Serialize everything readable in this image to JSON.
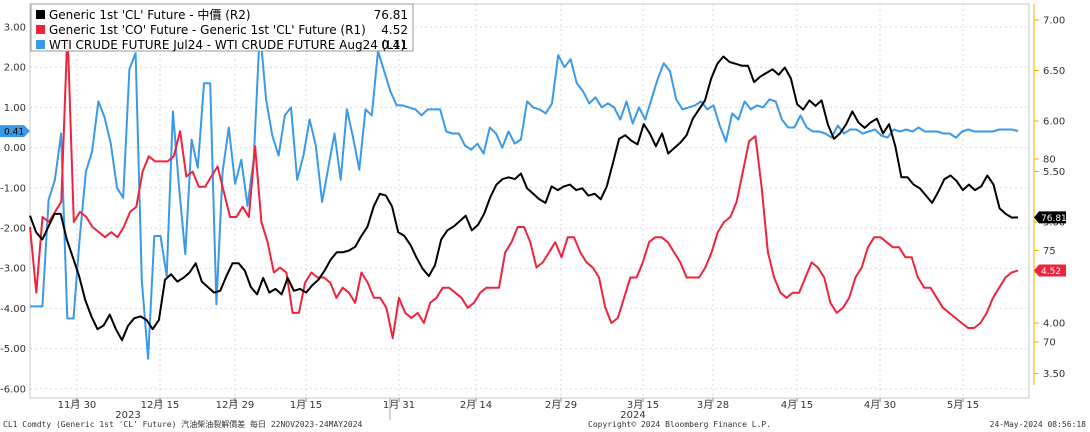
{
  "chart_data": {
    "type": "line",
    "legend": {
      "placement": "top-left",
      "items": [
        {
          "label": "Generic 1st 'CL' Future - 中價 (R2)",
          "value": "76.81",
          "color": "#000000"
        },
        {
          "label": "Generic 1st 'CO' Future - Generic 1st 'CL' Future (R1)",
          "value": "4.52",
          "color": "#ef233c"
        },
        {
          "label": "WTI CRUDE FUTURE Jul24 - WTI CRUDE FUTURE Aug24 (L1)",
          "value": "0.41",
          "color": "#3a9ae8"
        }
      ]
    },
    "y_left": {
      "ticks": [
        "3.00",
        "2.00",
        "1.00",
        "0.00",
        "-1.00",
        "-2.00",
        "-3.00",
        "-4.00",
        "-5.00",
        "-6.00"
      ],
      "range": [
        -6.0,
        3.0
      ]
    },
    "y_right1": {
      "ticks": [
        "7.00",
        "6.50",
        "6.00",
        "5.50",
        "5.00",
        "4.50",
        "4.00",
        "3.50"
      ],
      "range": [
        3.5,
        7.0
      ]
    },
    "y_right2": {
      "ticks": [
        "80",
        "75",
        "70"
      ],
      "range": [
        70,
        80
      ]
    },
    "x_ticks": [
      "11月 30",
      "12月 15",
      "12月 29",
      "1月 15",
      "1月 31",
      "2月 14",
      "2月 29",
      "3月 15",
      "3月 28",
      "4月 15",
      "4月 30",
      "5月 15"
    ],
    "year_labels": [
      "2023",
      "2024"
    ],
    "last_value_tags": [
      {
        "value": "0.41",
        "color": "#3a9ae8"
      },
      {
        "value": "76.81",
        "color": "#000000"
      },
      {
        "value": "4.52",
        "color": "#ef233c"
      }
    ],
    "series": [
      {
        "name": "WTI CRUDE FUTURE Jul24 - WTI CRUDE FUTURE Aug24 (L1)",
        "axis": "L1",
        "color": "#3a9ae8",
        "values": [
          -3.95,
          -3.95,
          -3.95,
          -1.3,
          -0.8,
          0.35,
          -4.25,
          -4.25,
          -2.25,
          -0.6,
          -0.1,
          1.15,
          0.75,
          0.1,
          -1.0,
          -1.25,
          1.95,
          2.35,
          -3.3,
          -5.25,
          -2.2,
          -2.2,
          -3.2,
          0.9,
          -1.0,
          -2.65,
          0.2,
          -0.5,
          1.6,
          1.6,
          -3.9,
          -0.6,
          0.5,
          -0.9,
          -0.3,
          -1.45,
          -0.3,
          2.95,
          1.2,
          0.3,
          -0.2,
          0.8,
          1.0,
          -0.8,
          -0.2,
          0.7,
          0.05,
          -1.35,
          -0.5,
          0.35,
          -0.8,
          0.95,
          0.25,
          -0.55,
          0.95,
          0.8,
          2.4,
          1.9,
          1.4,
          1.05,
          1.05,
          1.0,
          0.95,
          0.8,
          0.95,
          0.95,
          0.95,
          0.4,
          0.35,
          0.35,
          0.05,
          -0.05,
          0.1,
          -0.15,
          0.5,
          0.35,
          0.0,
          0.4,
          0.1,
          0.2,
          1.15,
          1.0,
          0.95,
          0.85,
          1.1,
          2.3,
          2.0,
          2.2,
          1.6,
          1.4,
          1.1,
          1.25,
          1.0,
          1.1,
          1.0,
          0.7,
          1.15,
          0.6,
          1.0,
          0.7,
          1.2,
          1.7,
          2.1,
          1.9,
          1.2,
          0.95,
          1.0,
          1.05,
          1.15,
          0.95,
          1.05,
          0.55,
          0.15,
          0.85,
          0.7,
          1.15,
          0.95,
          1.05,
          1.0,
          1.2,
          1.15,
          0.7,
          0.5,
          0.5,
          0.8,
          0.5,
          0.4,
          0.4,
          0.35,
          0.25,
          0.55,
          0.35,
          0.45,
          0.45,
          0.35,
          0.4,
          0.45,
          0.3,
          0.25,
          0.45,
          0.4,
          0.45,
          0.4,
          0.5,
          0.4,
          0.4,
          0.4,
          0.35,
          0.35,
          0.25,
          0.4,
          0.45,
          0.4,
          0.4,
          0.4,
          0.4,
          0.45,
          0.45,
          0.45,
          0.41
        ]
      },
      {
        "name": "Generic 1st 'CO' Future - Generic 1st 'CL' Future (R1)",
        "axis": "R1",
        "color": "#ef233c",
        "values": [
          4.95,
          4.3,
          5.05,
          5.0,
          5.1,
          5.2,
          6.9,
          5.0,
          5.1,
          5.05,
          4.95,
          4.9,
          4.85,
          4.9,
          4.85,
          4.95,
          5.1,
          5.15,
          5.5,
          5.65,
          5.6,
          5.6,
          5.6,
          5.65,
          5.9,
          5.45,
          5.5,
          5.35,
          5.35,
          5.45,
          5.55,
          5.3,
          5.05,
          5.05,
          5.15,
          5.05,
          5.75,
          5.0,
          4.8,
          4.5,
          4.55,
          4.5,
          4.1,
          4.1,
          4.4,
          4.5,
          4.45,
          4.45,
          4.4,
          4.25,
          4.35,
          4.3,
          4.2,
          4.5,
          4.4,
          4.25,
          4.25,
          4.15,
          3.85,
          4.25,
          4.1,
          4.05,
          4.1,
          4.0,
          4.2,
          4.25,
          4.35,
          4.35,
          4.3,
          4.25,
          4.15,
          4.2,
          4.3,
          4.35,
          4.35,
          4.35,
          4.7,
          4.8,
          4.95,
          4.95,
          4.8,
          4.55,
          4.6,
          4.7,
          4.8,
          4.65,
          4.85,
          4.85,
          4.7,
          4.6,
          4.55,
          4.45,
          4.15,
          4.0,
          4.05,
          4.25,
          4.45,
          4.45,
          4.6,
          4.8,
          4.85,
          4.85,
          4.8,
          4.7,
          4.6,
          4.45,
          4.45,
          4.45,
          4.55,
          4.7,
          4.9,
          5.0,
          5.05,
          5.2,
          5.5,
          5.8,
          5.85,
          5.35,
          4.7,
          4.45,
          4.3,
          4.25,
          4.3,
          4.3,
          4.45,
          4.6,
          4.55,
          4.45,
          4.2,
          4.1,
          4.15,
          4.25,
          4.45,
          4.55,
          4.75,
          4.85,
          4.85,
          4.8,
          4.75,
          4.75,
          4.65,
          4.65,
          4.45,
          4.35,
          4.35,
          4.25,
          4.15,
          4.1,
          4.05,
          4.0,
          3.95,
          3.95,
          4.0,
          4.1,
          4.25,
          4.35,
          4.45,
          4.5,
          4.52
        ]
      },
      {
        "name": "Generic 1st 'CL' Future - 中價 (R2)",
        "axis": "R2",
        "color": "#000000",
        "values": [
          76.9,
          76.0,
          75.6,
          76.3,
          77.0,
          77.0,
          75.6,
          74.6,
          73.6,
          72.3,
          71.4,
          70.7,
          70.9,
          71.5,
          70.7,
          70.1,
          70.9,
          71.3,
          71.4,
          71.2,
          70.7,
          71.2,
          73.4,
          73.7,
          73.3,
          73.5,
          73.8,
          74.3,
          73.3,
          73.0,
          72.7,
          72.8,
          73.6,
          74.3,
          74.3,
          73.9,
          73.0,
          72.6,
          73.5,
          72.7,
          72.9,
          72.6,
          73.5,
          72.8,
          72.9,
          72.7,
          73.1,
          73.4,
          73.9,
          74.5,
          74.9,
          74.9,
          75.0,
          75.2,
          75.8,
          76.3,
          77.4,
          78.1,
          78.0,
          77.4,
          76.0,
          75.8,
          75.3,
          74.6,
          74.0,
          73.6,
          74.2,
          75.6,
          76.1,
          76.3,
          76.6,
          76.9,
          76.1,
          76.4,
          77.0,
          77.9,
          78.6,
          78.9,
          79.0,
          78.9,
          79.2,
          78.4,
          78.1,
          77.8,
          77.6,
          78.5,
          78.3,
          78.5,
          78.6,
          78.3,
          78.4,
          78.0,
          78.1,
          77.8,
          78.5,
          79.8,
          81.1,
          81.3,
          81.0,
          80.8,
          81.9,
          81.4,
          80.7,
          81.4,
          80.3,
          80.6,
          80.9,
          81.3,
          82.2,
          82.7,
          83.2,
          84.4,
          85.2,
          85.6,
          85.3,
          85.2,
          85.1,
          85.1,
          84.2,
          84.5,
          84.7,
          84.9,
          84.6,
          85.0,
          84.4,
          83.0,
          82.7,
          83.2,
          82.9,
          83.2,
          81.9,
          81.1,
          81.4,
          81.9,
          82.6,
          82.0,
          81.7,
          82.0,
          82.2,
          81.4,
          81.9,
          80.7,
          79.0,
          79.0,
          78.6,
          78.4,
          78.0,
          77.6,
          78.2,
          78.9,
          79.1,
          78.8,
          78.3,
          78.6,
          78.3,
          78.5,
          79.1,
          78.6,
          77.3,
          77.0,
          76.8,
          76.81
        ]
      }
    ]
  },
  "footer": {
    "left": "CL1 Comdty (Generic 1st 'CL' Future) 汽油柴油裂解價差  每日 22NOV2023-24MAY2024",
    "center": "Copyright© 2024 Bloomberg Finance L.P.",
    "right": "24-May-2024 08:56:18"
  }
}
